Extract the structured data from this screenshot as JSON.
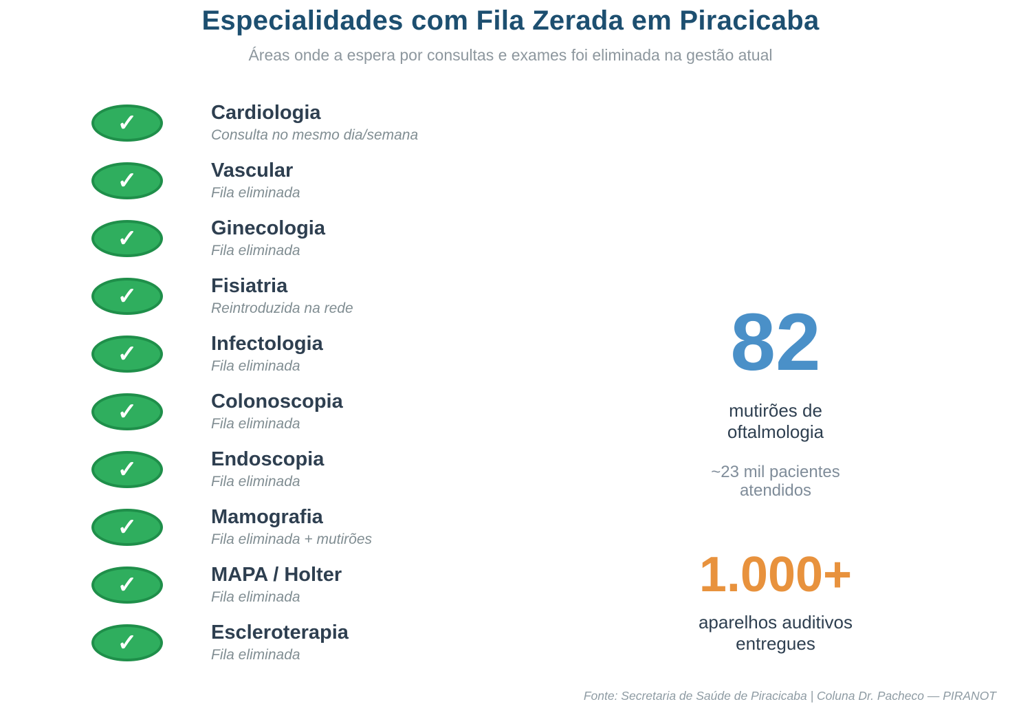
{
  "chart_data": {
    "type": "table",
    "title": "Especialidades com Fila Zerada em Piracicaba",
    "subtitle": "Áreas onde a espera por consultas e exames foi eliminada na gestão atual",
    "columns": [
      "Especialidade",
      "Status"
    ],
    "rows": [
      [
        "Cardiologia",
        "Consulta no mesmo dia/semana"
      ],
      [
        "Vascular",
        "Fila eliminada"
      ],
      [
        "Ginecologia",
        "Fila eliminada"
      ],
      [
        "Fisiatria",
        "Reintroduzida na rede"
      ],
      [
        "Infectologia",
        "Fila eliminada"
      ],
      [
        "Colonoscopia",
        "Fila eliminada"
      ],
      [
        "Endoscopia",
        "Fila eliminada"
      ],
      [
        "Mamografia",
        "Fila eliminada + mutirões"
      ],
      [
        "MAPA / Holter",
        "Fila eliminada"
      ],
      [
        "Escleroterapia",
        "Fila eliminada"
      ]
    ],
    "stats": [
      {
        "value": 82,
        "display": "82",
        "label": "mutirões de\noftalmologia",
        "note": "~23 mil pacientes\natendidos",
        "color": "#4a90c8"
      },
      {
        "value": 1000,
        "display": "1.000+",
        "label": "aparelhos auditivos\nentregues",
        "color": "#e8923d"
      }
    ],
    "source": "Fonte: Secretaria de Saúde de Piracicaba | Coluna Dr. Pacheco — PIRANOT"
  },
  "icons": {
    "check": "✓"
  },
  "colors": {
    "heading": "#1d4f70",
    "text_dark": "#2e3f50",
    "text_muted": "#8d979e",
    "status_italic": "#808d92",
    "oval_fill": "#2fae5e",
    "oval_border": "#1f8f4a",
    "stat_blue": "#4a90c8",
    "stat_orange": "#e8923d",
    "footer_gray": "#8e9ba3",
    "background": "#ffffff"
  }
}
